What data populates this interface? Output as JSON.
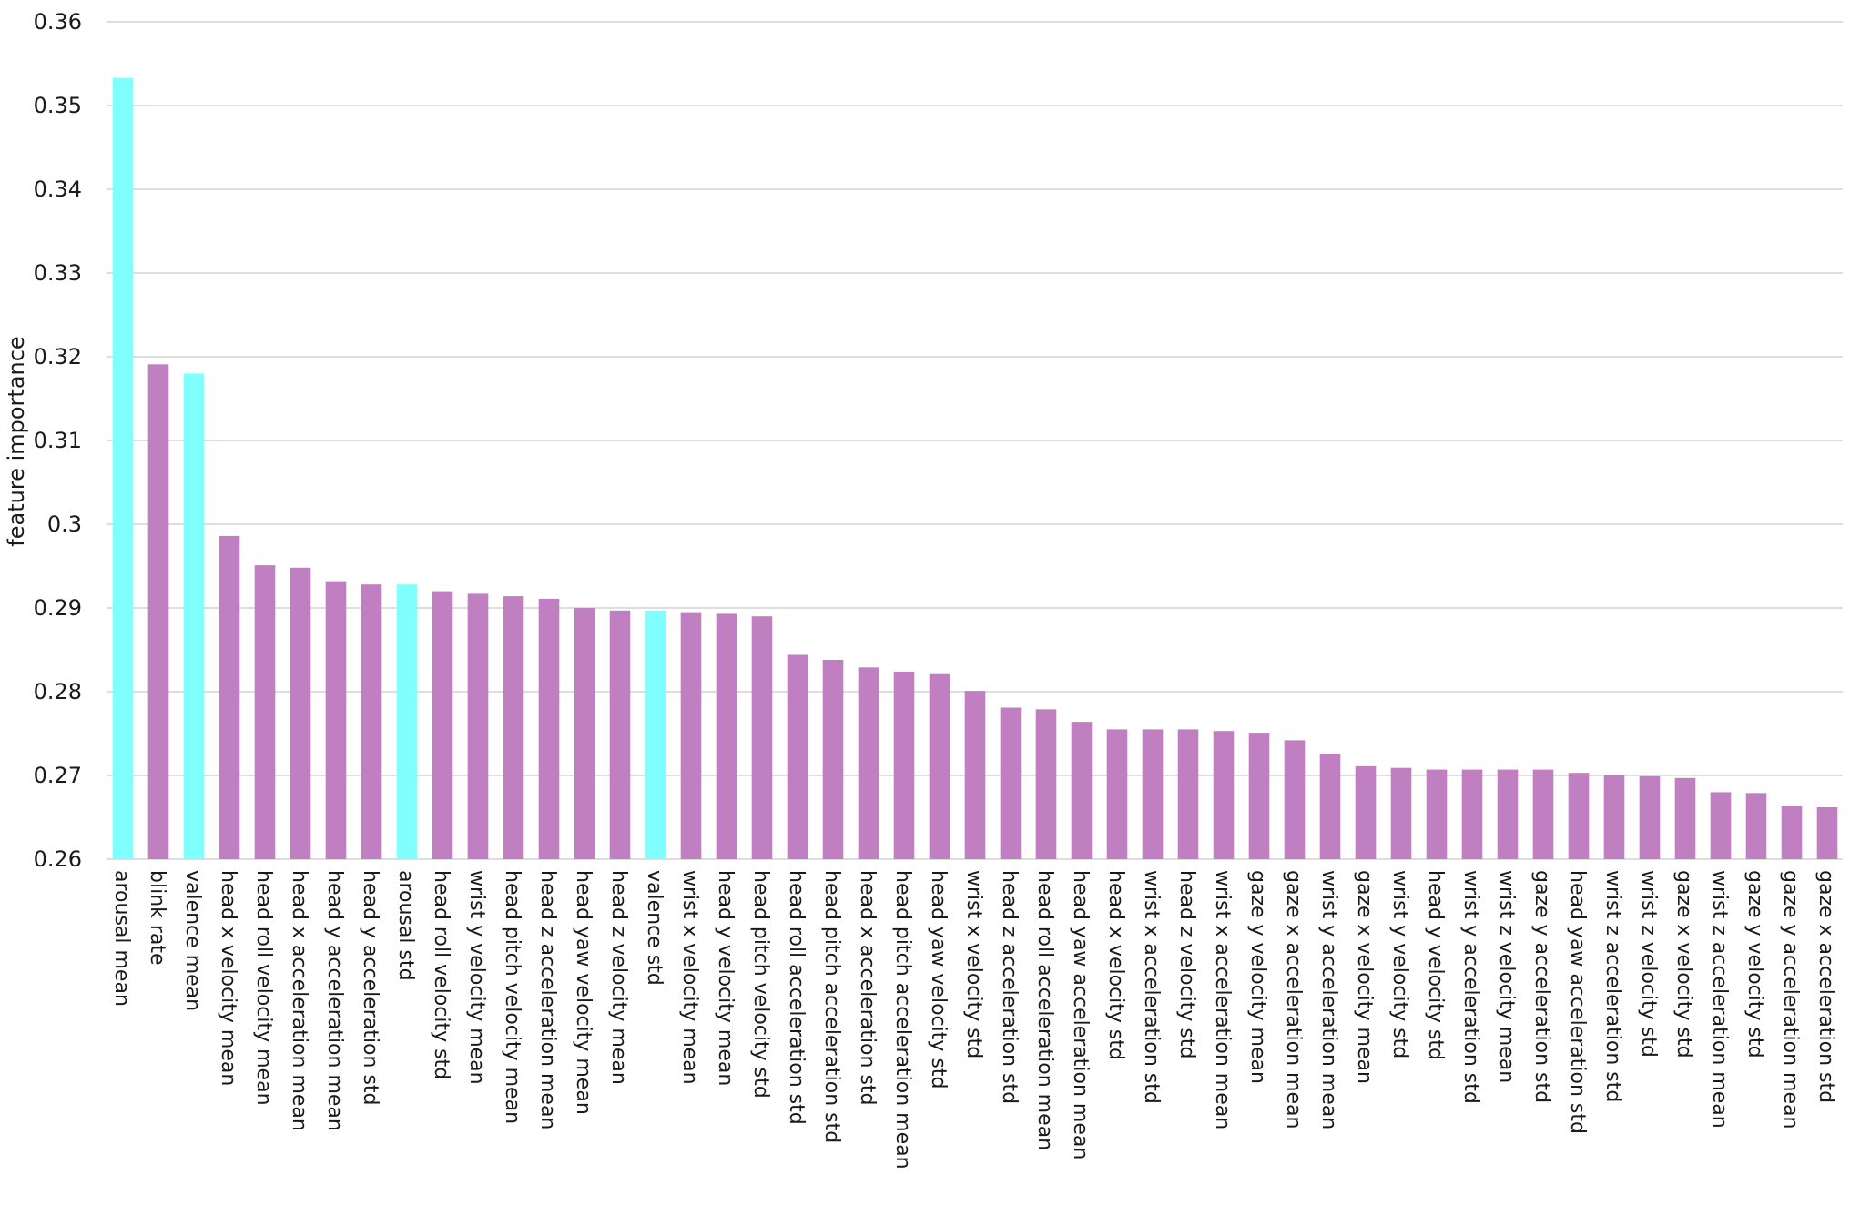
{
  "chart_data": {
    "type": "bar",
    "title": "",
    "xlabel": "",
    "ylabel": "feature importance",
    "ylim": [
      0.26,
      0.36
    ],
    "yticks": [
      "0.26",
      "0.27",
      "0.28",
      "0.29",
      "0.3",
      "0.31",
      "0.32",
      "0.33",
      "0.34",
      "0.35",
      "0.36"
    ],
    "grid": "horizontal",
    "colors": {
      "highlight": "#80ffff",
      "default": "#c07fc0",
      "grid": "#d3d3d3"
    },
    "categories": [
      "arousal mean",
      "blink rate",
      "valence mean",
      "head x velocity mean",
      "head roll velocity mean",
      "head x acceleration mean",
      "head y acceleration mean",
      "head y acceleration std",
      "arousal std",
      "head roll velocity std",
      "wrist y velocity mean",
      "head pitch velocity mean",
      "head z acceleration mean",
      "head yaw velocity mean",
      "head z velocity mean",
      "valence std",
      "wrist x velocity mean",
      "head y velocity mean",
      "head pitch velocity std",
      "head roll acceleration std",
      "head pitch acceleration std",
      "head x acceleration std",
      "head pitch acceleration mean",
      "head yaw velocity std",
      "wrist x velocity std",
      "head z acceleration std",
      "head roll acceleration mean",
      "head yaw acceleration mean",
      "head x velocity std",
      "wrist x acceleration std",
      "head z velocity std",
      "wrist x acceleration mean",
      "gaze y velocity mean",
      "gaze x acceleration mean",
      "wrist y acceleration mean",
      "gaze x velocity mean",
      "wrist y velocity std",
      "head y velocity std",
      "wrist y acceleration std",
      "wrist z velocity mean",
      "gaze y acceleration std",
      "head yaw acceleration std",
      "wrist z acceleration std",
      "wrist z velocity std",
      "gaze x velocity std",
      "wrist z acceleration mean",
      "gaze y velocity std",
      "gaze y acceleration mean",
      "gaze x acceleration std"
    ],
    "values": [
      0.3533,
      0.3191,
      0.318,
      0.2986,
      0.2951,
      0.2948,
      0.2932,
      0.2928,
      0.2928,
      0.292,
      0.2917,
      0.2914,
      0.2911,
      0.29,
      0.2897,
      0.2897,
      0.2895,
      0.2893,
      0.289,
      0.2844,
      0.2838,
      0.2829,
      0.2824,
      0.2821,
      0.2801,
      0.2781,
      0.2779,
      0.2764,
      0.2755,
      0.2755,
      0.2755,
      0.2753,
      0.2751,
      0.2742,
      0.2726,
      0.2711,
      0.2709,
      0.2707,
      0.2707,
      0.2707,
      0.2707,
      0.2703,
      0.2701,
      0.2699,
      0.2697,
      0.268,
      0.2679,
      0.2663,
      0.2662
    ],
    "highlighted": [
      "arousal mean",
      "valence mean",
      "arousal std",
      "valence std"
    ]
  }
}
